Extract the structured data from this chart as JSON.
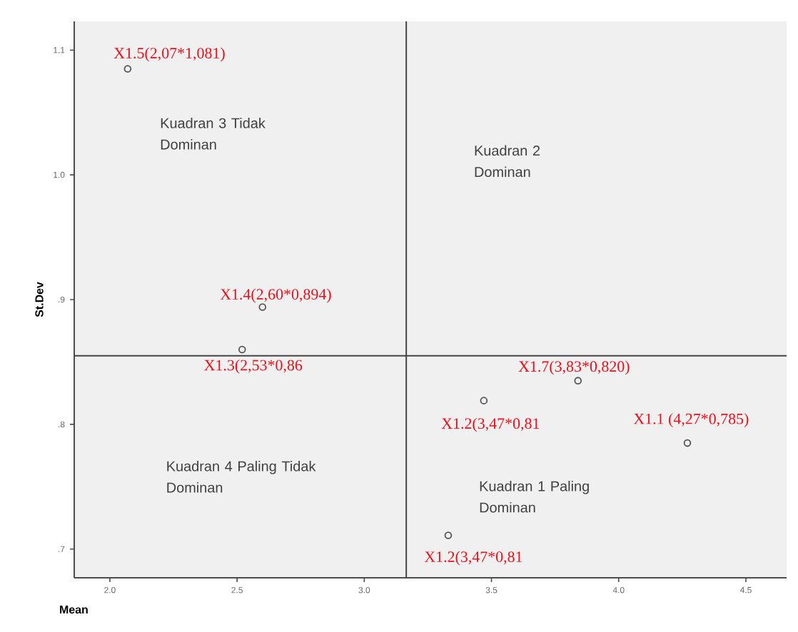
{
  "chart_data": {
    "type": "scatter",
    "xlabel": "Mean",
    "ylabel": "St.Dev",
    "x": [
      2.07,
      2.6,
      2.52,
      3.47,
      3.84,
      4.27,
      3.33
    ],
    "series": [
      {
        "color": "#555555",
        "values": [
          1.085,
          0.894,
          0.86,
          0.819,
          0.835,
          0.785,
          0.711
        ]
      }
    ],
    "marker": "circle",
    "xlim": [
      1.86,
      4.66
    ],
    "ylim": [
      0.677,
      1.123
    ],
    "xticks": [
      {
        "value": 2.0,
        "label": "2.0"
      },
      {
        "value": 2.5,
        "label": "2.5"
      },
      {
        "value": 3.0,
        "label": "3.0"
      },
      {
        "value": 3.5,
        "label": "3.5"
      },
      {
        "value": 4.0,
        "label": "4.0"
      },
      {
        "value": 4.5,
        "label": "4.5"
      }
    ],
    "yticks": [
      {
        "value": 0.7,
        "label": ".7"
      },
      {
        "value": 0.8,
        "label": ".8"
      },
      {
        "value": 0.9,
        "label": ".9"
      },
      {
        "value": 1.0,
        "label": "1.0"
      },
      {
        "value": 1.1,
        "label": "1.1"
      }
    ],
    "ref_lines": [
      {
        "axis": "x",
        "value": 3.165,
        "color": "#444444"
      },
      {
        "axis": "y",
        "value": 0.855,
        "color": "#444444"
      }
    ],
    "annotations": [
      {
        "text": "X1.5(2,07*1,081)",
        "x": 2.07,
        "y": 1.085
      },
      {
        "text": "X1.4(2,60*0,894)",
        "x": 2.6,
        "y": 0.894
      },
      {
        "text": "X1.3(2,53*0,86",
        "x": 2.52,
        "y": 0.86
      },
      {
        "text": "X1.7(3,83*0,820)",
        "x": 3.84,
        "y": 0.835
      },
      {
        "text": "X1.2(3,47*0,81",
        "x": 3.47,
        "y": 0.819
      },
      {
        "text": "X1.1 (4,27*0,785)",
        "x": 4.27,
        "y": 0.785
      },
      {
        "text": "X1.2(3,47*0,81",
        "x": 3.33,
        "y": 0.711
      },
      "Kuadran 3 Tidak Dominan",
      "Kuadran 2 Dominan",
      "Kuadran 4 Paling Tidak Dominan",
      "Kuadran 1 Paling Dominan"
    ]
  }
}
